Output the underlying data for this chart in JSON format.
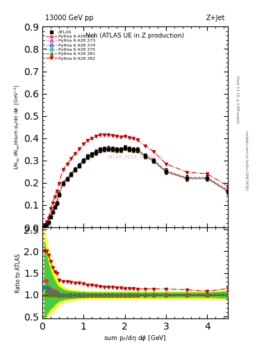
{
  "title_top": "13000 GeV pp",
  "title_right": "Z+Jet",
  "plot_title": "Nch (ATLAS UE in Z production)",
  "xlabel": "sum p$_T$/d$\\eta$ d$\\phi$ [GeV]",
  "ylabel_main": "1/N$_{ev}$ dN$_{ev}$/dsum p$_T$/d$\\eta$ d$\\phi$  [GeV$^{-1}$]",
  "ylabel_ratio": "Ratio to ATLAS",
  "right_label1": "Rivet 3.1.10, ≥ 2.6M events",
  "right_label2": "mcplots.cern.ch [arXiv:1306.3436]",
  "watermark": "ATLAS_2019_I1736531",
  "xlim": [
    0,
    4.5
  ],
  "ylim_main": [
    0.0,
    0.9
  ],
  "ylim_ratio": [
    0.45,
    2.55
  ],
  "yticks_main": [
    0.0,
    0.1,
    0.2,
    0.3,
    0.4,
    0.5,
    0.6,
    0.7,
    0.8,
    0.9
  ],
  "yticks_ratio": [
    0.5,
    1.0,
    1.5,
    2.0,
    2.5
  ],
  "atlas_x": [
    0.05,
    0.1,
    0.15,
    0.2,
    0.25,
    0.3,
    0.35,
    0.4,
    0.5,
    0.6,
    0.7,
    0.8,
    0.9,
    1.0,
    1.1,
    1.2,
    1.3,
    1.4,
    1.5,
    1.6,
    1.7,
    1.8,
    1.9,
    2.0,
    2.1,
    2.2,
    2.3,
    2.5,
    2.7,
    3.0,
    3.5,
    4.0,
    4.5
  ],
  "atlas_y": [
    0.006,
    0.012,
    0.022,
    0.048,
    0.068,
    0.09,
    0.108,
    0.148,
    0.198,
    0.218,
    0.238,
    0.26,
    0.278,
    0.3,
    0.318,
    0.328,
    0.338,
    0.348,
    0.352,
    0.354,
    0.352,
    0.35,
    0.35,
    0.358,
    0.352,
    0.35,
    0.348,
    0.322,
    0.3,
    0.252,
    0.222,
    0.222,
    0.162
  ],
  "atlas_yerr_lo": [
    0.002,
    0.003,
    0.004,
    0.006,
    0.007,
    0.007,
    0.007,
    0.008,
    0.008,
    0.008,
    0.008,
    0.008,
    0.009,
    0.009,
    0.009,
    0.009,
    0.01,
    0.01,
    0.01,
    0.01,
    0.01,
    0.01,
    0.01,
    0.01,
    0.01,
    0.01,
    0.01,
    0.01,
    0.01,
    0.012,
    0.012,
    0.012,
    0.012
  ],
  "atlas_yerr_hi": [
    0.002,
    0.003,
    0.004,
    0.006,
    0.007,
    0.007,
    0.007,
    0.008,
    0.008,
    0.008,
    0.008,
    0.008,
    0.009,
    0.009,
    0.009,
    0.009,
    0.01,
    0.01,
    0.01,
    0.01,
    0.01,
    0.01,
    0.01,
    0.01,
    0.01,
    0.01,
    0.01,
    0.01,
    0.01,
    0.012,
    0.012,
    0.012,
    0.012
  ],
  "series": [
    {
      "label": "Pythia 6.428 370",
      "color": "#ff2222",
      "marker": "^",
      "linestyle": "--",
      "fillstyle": "none",
      "x": [
        0.05,
        0.1,
        0.15,
        0.2,
        0.25,
        0.3,
        0.35,
        0.4,
        0.5,
        0.6,
        0.7,
        0.8,
        0.9,
        1.0,
        1.1,
        1.2,
        1.3,
        1.4,
        1.5,
        1.6,
        1.7,
        1.8,
        1.9,
        2.0,
        2.1,
        2.2,
        2.3,
        2.5,
        2.7,
        3.0,
        3.5,
        4.0,
        4.5
      ],
      "y": [
        0.008,
        0.016,
        0.026,
        0.055,
        0.076,
        0.098,
        0.116,
        0.152,
        0.202,
        0.222,
        0.242,
        0.264,
        0.282,
        0.304,
        0.32,
        0.33,
        0.34,
        0.35,
        0.355,
        0.356,
        0.354,
        0.352,
        0.352,
        0.36,
        0.354,
        0.352,
        0.35,
        0.324,
        0.302,
        0.254,
        0.224,
        0.224,
        0.166
      ]
    },
    {
      "label": "Pythia 6.428 373",
      "color": "#9933cc",
      "marker": "^",
      "linestyle": ":",
      "fillstyle": "none",
      "x": [
        0.05,
        0.1,
        0.15,
        0.2,
        0.25,
        0.3,
        0.35,
        0.4,
        0.5,
        0.6,
        0.7,
        0.8,
        0.9,
        1.0,
        1.1,
        1.2,
        1.3,
        1.4,
        1.5,
        1.6,
        1.7,
        1.8,
        1.9,
        2.0,
        2.1,
        2.2,
        2.3,
        2.5,
        2.7,
        3.0,
        3.5,
        4.0,
        4.5
      ],
      "y": [
        0.007,
        0.014,
        0.024,
        0.05,
        0.07,
        0.092,
        0.11,
        0.148,
        0.198,
        0.218,
        0.238,
        0.26,
        0.278,
        0.3,
        0.316,
        0.326,
        0.336,
        0.346,
        0.35,
        0.352,
        0.35,
        0.348,
        0.348,
        0.356,
        0.35,
        0.348,
        0.346,
        0.32,
        0.298,
        0.25,
        0.22,
        0.22,
        0.162
      ]
    },
    {
      "label": "Pythia 6.428 374",
      "color": "#2244bb",
      "marker": "o",
      "linestyle": ":",
      "fillstyle": "none",
      "x": [
        0.05,
        0.1,
        0.15,
        0.2,
        0.25,
        0.3,
        0.35,
        0.4,
        0.5,
        0.6,
        0.7,
        0.8,
        0.9,
        1.0,
        1.1,
        1.2,
        1.3,
        1.4,
        1.5,
        1.6,
        1.7,
        1.8,
        1.9,
        2.0,
        2.1,
        2.2,
        2.3,
        2.5,
        2.7,
        3.0,
        3.5,
        4.0,
        4.5
      ],
      "y": [
        0.007,
        0.014,
        0.024,
        0.05,
        0.07,
        0.092,
        0.11,
        0.148,
        0.198,
        0.218,
        0.238,
        0.26,
        0.278,
        0.3,
        0.316,
        0.326,
        0.336,
        0.346,
        0.35,
        0.352,
        0.35,
        0.348,
        0.348,
        0.356,
        0.35,
        0.348,
        0.346,
        0.32,
        0.298,
        0.25,
        0.22,
        0.22,
        0.162
      ]
    },
    {
      "label": "Pythia 6.428 375",
      "color": "#009999",
      "marker": "o",
      "linestyle": ":",
      "fillstyle": "none",
      "x": [
        0.05,
        0.1,
        0.15,
        0.2,
        0.25,
        0.3,
        0.35,
        0.4,
        0.5,
        0.6,
        0.7,
        0.8,
        0.9,
        1.0,
        1.1,
        1.2,
        1.3,
        1.4,
        1.5,
        1.6,
        1.7,
        1.8,
        1.9,
        2.0,
        2.1,
        2.2,
        2.3,
        2.5,
        2.7,
        3.0,
        3.5,
        4.0,
        4.5
      ],
      "y": [
        0.007,
        0.014,
        0.024,
        0.05,
        0.07,
        0.092,
        0.11,
        0.148,
        0.198,
        0.218,
        0.238,
        0.26,
        0.278,
        0.3,
        0.316,
        0.326,
        0.336,
        0.346,
        0.35,
        0.352,
        0.35,
        0.348,
        0.348,
        0.356,
        0.35,
        0.348,
        0.346,
        0.32,
        0.298,
        0.25,
        0.22,
        0.22,
        0.162
      ]
    },
    {
      "label": "Pythia 6.428 381",
      "color": "#886600",
      "marker": "^",
      "linestyle": "--",
      "fillstyle": "full",
      "x": [
        0.05,
        0.1,
        0.15,
        0.2,
        0.25,
        0.3,
        0.35,
        0.4,
        0.5,
        0.6,
        0.7,
        0.8,
        0.9,
        1.0,
        1.1,
        1.2,
        1.3,
        1.4,
        1.5,
        1.6,
        1.7,
        1.8,
        1.9,
        2.0,
        2.1,
        2.2,
        2.3,
        2.5,
        2.7,
        3.0,
        3.5,
        4.0,
        4.5
      ],
      "y": [
        0.006,
        0.013,
        0.022,
        0.048,
        0.068,
        0.09,
        0.108,
        0.145,
        0.195,
        0.215,
        0.235,
        0.257,
        0.275,
        0.297,
        0.312,
        0.322,
        0.332,
        0.342,
        0.347,
        0.348,
        0.346,
        0.344,
        0.344,
        0.352,
        0.346,
        0.344,
        0.342,
        0.316,
        0.295,
        0.248,
        0.218,
        0.218,
        0.16
      ]
    },
    {
      "label": "Pythia 6.428 382",
      "color": "#cc0000",
      "marker": "v",
      "linestyle": "-.",
      "fillstyle": "full",
      "x": [
        0.05,
        0.1,
        0.15,
        0.2,
        0.25,
        0.3,
        0.35,
        0.4,
        0.5,
        0.6,
        0.7,
        0.8,
        0.9,
        1.0,
        1.1,
        1.2,
        1.3,
        1.4,
        1.5,
        1.6,
        1.7,
        1.8,
        1.9,
        2.0,
        2.1,
        2.2,
        2.3,
        2.5,
        2.7,
        3.0,
        3.5,
        4.0,
        4.5
      ],
      "y": [
        0.012,
        0.024,
        0.042,
        0.085,
        0.11,
        0.138,
        0.162,
        0.198,
        0.258,
        0.285,
        0.308,
        0.332,
        0.352,
        0.374,
        0.39,
        0.4,
        0.408,
        0.415,
        0.415,
        0.415,
        0.412,
        0.408,
        0.405,
        0.408,
        0.402,
        0.398,
        0.392,
        0.365,
        0.34,
        0.285,
        0.248,
        0.24,
        0.185
      ]
    }
  ],
  "band_x": [
    0.05,
    0.1,
    0.15,
    0.2,
    0.25,
    0.3,
    0.35,
    0.4,
    0.5,
    0.6,
    0.7,
    0.8,
    0.9,
    1.0,
    1.1,
    1.2,
    1.3,
    1.4,
    1.5,
    1.6,
    1.7,
    1.8,
    1.9,
    2.0,
    2.1,
    2.2,
    2.3,
    2.5,
    2.7,
    3.0,
    3.5,
    4.0,
    4.5
  ],
  "band_yellow_lo": [
    0.4,
    0.5,
    0.55,
    0.58,
    0.62,
    0.68,
    0.72,
    0.78,
    0.83,
    0.86,
    0.88,
    0.89,
    0.9,
    0.91,
    0.92,
    0.92,
    0.92,
    0.92,
    0.92,
    0.92,
    0.92,
    0.92,
    0.92,
    0.92,
    0.92,
    0.92,
    0.92,
    0.92,
    0.92,
    0.92,
    0.92,
    0.92,
    0.9
  ],
  "band_yellow_hi": [
    2.5,
    2.2,
    2.0,
    1.8,
    1.65,
    1.5,
    1.38,
    1.28,
    1.18,
    1.14,
    1.12,
    1.11,
    1.1,
    1.09,
    1.08,
    1.08,
    1.08,
    1.08,
    1.08,
    1.08,
    1.08,
    1.08,
    1.08,
    1.08,
    1.08,
    1.08,
    1.08,
    1.08,
    1.08,
    1.08,
    1.08,
    1.08,
    1.1
  ],
  "band_green_lo": [
    0.45,
    0.55,
    0.62,
    0.68,
    0.72,
    0.78,
    0.82,
    0.86,
    0.89,
    0.91,
    0.92,
    0.93,
    0.94,
    0.94,
    0.95,
    0.95,
    0.95,
    0.95,
    0.95,
    0.95,
    0.95,
    0.95,
    0.95,
    0.95,
    0.95,
    0.95,
    0.95,
    0.95,
    0.95,
    0.95,
    0.95,
    0.95,
    0.93
  ],
  "band_green_hi": [
    2.2,
    1.9,
    1.7,
    1.55,
    1.42,
    1.32,
    1.24,
    1.18,
    1.12,
    1.09,
    1.08,
    1.07,
    1.06,
    1.06,
    1.05,
    1.05,
    1.05,
    1.05,
    1.05,
    1.05,
    1.05,
    1.05,
    1.05,
    1.05,
    1.05,
    1.05,
    1.05,
    1.05,
    1.05,
    1.05,
    1.05,
    1.05,
    1.07
  ],
  "background_color": "#ffffff"
}
